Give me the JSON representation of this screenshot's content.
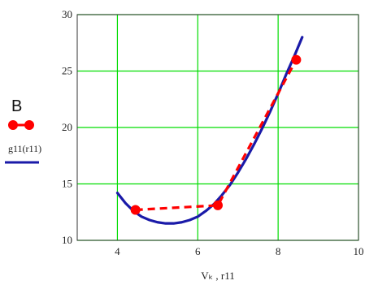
{
  "chart_data": {
    "type": "line",
    "xlim": [
      3,
      10
    ],
    "ylim": [
      10,
      30
    ],
    "x_ticks": [
      4,
      6,
      8,
      10
    ],
    "y_ticks": [
      10,
      15,
      20,
      25,
      30
    ],
    "x_tick_labels": [
      "4",
      "6",
      "8",
      "10"
    ],
    "y_tick_labels": [
      "10",
      "15",
      "20",
      "25",
      "30"
    ],
    "xlabel": "Vₖ , r11",
    "grid": true,
    "grid_color": "#00dd00",
    "series": [
      {
        "name": "B",
        "style": "dashed-with-markers",
        "color": "#ff0000",
        "x": [
          4.45,
          6.5,
          8.45
        ],
        "y": [
          12.7,
          13.1,
          26.0
        ]
      },
      {
        "name": "g11(r11)",
        "style": "solid",
        "color": "#1a1aa8",
        "x": [
          4.0,
          4.2,
          4.4,
          4.6,
          4.8,
          5.0,
          5.2,
          5.4,
          5.6,
          5.8,
          6.0,
          6.2,
          6.4,
          6.6,
          6.8,
          7.0,
          7.2,
          7.4,
          7.6,
          7.8,
          8.0,
          8.2,
          8.4,
          8.6
        ],
        "y": [
          14.2,
          13.3,
          12.6,
          12.1,
          11.8,
          11.6,
          11.5,
          11.5,
          11.6,
          11.8,
          12.1,
          12.6,
          13.2,
          14.0,
          14.9,
          16.0,
          17.2,
          18.5,
          19.9,
          21.4,
          23.0,
          24.7,
          26.3,
          28.0
        ]
      }
    ],
    "legend": {
      "placement": "left",
      "entries": [
        "B",
        "g11(r11)"
      ]
    }
  }
}
